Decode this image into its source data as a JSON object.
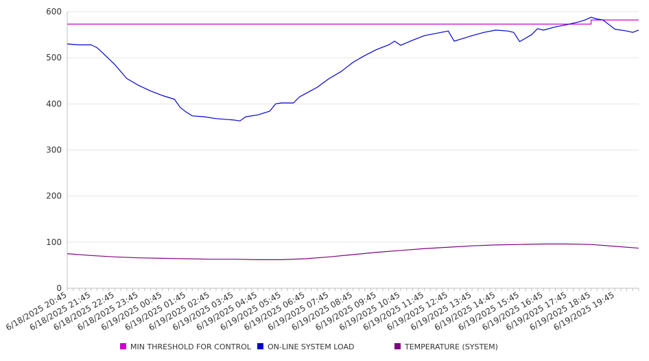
{
  "chart_data": {
    "type": "line",
    "title": "",
    "xlabel": "",
    "ylabel": "",
    "ylim": [
      0,
      600
    ],
    "yticks": [
      0,
      100,
      200,
      300,
      400,
      500,
      600
    ],
    "grid": true,
    "legend_position": "bottom",
    "x_tick_labels": [
      "6/18/2025 20:45",
      "6/18/2025 21:45",
      "6/18/2025 22:45",
      "6/18/2025 23:45",
      "6/19/2025 00:45",
      "6/19/2025 01:45",
      "6/19/2025 02:45",
      "6/19/2025 03:45",
      "6/19/2025 04:45",
      "6/19/2025 05:45",
      "6/19/2025 06:45",
      "6/19/2025 07:45",
      "6/19/2025 08:45",
      "6/19/2025 09:45",
      "6/19/2025 10:45",
      "6/19/2025 11:45",
      "6/19/2025 12:45",
      "6/19/2025 13:45",
      "6/19/2025 14:45",
      "6/19/2025 15:45",
      "6/19/2025 16:45",
      "6/19/2025 17:45",
      "6/19/2025 18:45",
      "6/19/2025 19:45"
    ],
    "x_range": [
      "6/18/2025 20:45",
      "6/19/2025 20:45"
    ],
    "series": [
      {
        "name": "MIN THRESHOLD FOR CONTROL",
        "color": "#cc00cc",
        "points": [
          [
            "6/18/2025 20:45",
            573
          ],
          [
            "6/19/2025 18:45",
            573
          ],
          [
            "6/19/2025 18:45",
            582
          ],
          [
            "6/19/2025 20:45",
            582
          ]
        ]
      },
      {
        "name": "ON-LINE SYSTEM LOAD",
        "color": "#0000cc",
        "points": [
          [
            "6/18/2025 20:45",
            530
          ],
          [
            "6/18/2025 21:15",
            528
          ],
          [
            "6/18/2025 21:45",
            528
          ],
          [
            "6/18/2025 22:00",
            522
          ],
          [
            "6/18/2025 22:15",
            510
          ],
          [
            "6/18/2025 22:45",
            485
          ],
          [
            "6/18/2025 23:15",
            455
          ],
          [
            "6/18/2025 23:45",
            440
          ],
          [
            "6/19/2025 00:15",
            428
          ],
          [
            "6/19/2025 00:45",
            418
          ],
          [
            "6/19/2025 01:15",
            410
          ],
          [
            "6/19/2025 01:30",
            392
          ],
          [
            "6/19/2025 01:45",
            382
          ],
          [
            "6/19/2025 02:00",
            374
          ],
          [
            "6/19/2025 02:30",
            372
          ],
          [
            "6/19/2025 03:00",
            368
          ],
          [
            "6/19/2025 03:30",
            366
          ],
          [
            "6/19/2025 03:45",
            365
          ],
          [
            "6/19/2025 04:00",
            363
          ],
          [
            "6/19/2025 04:15",
            372
          ],
          [
            "6/19/2025 04:45",
            376
          ],
          [
            "6/19/2025 05:15",
            384
          ],
          [
            "6/19/2025 05:30",
            400
          ],
          [
            "6/19/2025 05:45",
            402
          ],
          [
            "6/19/2025 06:15",
            402
          ],
          [
            "6/19/2025 06:30",
            415
          ],
          [
            "6/19/2025 06:45",
            422
          ],
          [
            "6/19/2025 07:15",
            436
          ],
          [
            "6/19/2025 07:45",
            455
          ],
          [
            "6/19/2025 08:15",
            470
          ],
          [
            "6/19/2025 08:45",
            490
          ],
          [
            "6/19/2025 09:15",
            505
          ],
          [
            "6/19/2025 09:45",
            518
          ],
          [
            "6/19/2025 10:15",
            528
          ],
          [
            "6/19/2025 10:30",
            536
          ],
          [
            "6/19/2025 10:45",
            527
          ],
          [
            "6/19/2025 11:15",
            538
          ],
          [
            "6/19/2025 11:45",
            548
          ],
          [
            "6/19/2025 12:15",
            553
          ],
          [
            "6/19/2025 12:45",
            558
          ],
          [
            "6/19/2025 13:00",
            536
          ],
          [
            "6/19/2025 13:15",
            540
          ],
          [
            "6/19/2025 13:45",
            548
          ],
          [
            "6/19/2025 14:15",
            555
          ],
          [
            "6/19/2025 14:45",
            560
          ],
          [
            "6/19/2025 15:15",
            558
          ],
          [
            "6/19/2025 15:30",
            555
          ],
          [
            "6/19/2025 15:45",
            535
          ],
          [
            "6/19/2025 16:15",
            550
          ],
          [
            "6/19/2025 16:30",
            563
          ],
          [
            "6/19/2025 16:45",
            560
          ],
          [
            "6/19/2025 17:15",
            567
          ],
          [
            "6/19/2025 17:45",
            572
          ],
          [
            "6/19/2025 18:15",
            578
          ],
          [
            "6/19/2025 18:30",
            582
          ],
          [
            "6/19/2025 18:45",
            588
          ],
          [
            "6/19/2025 19:00",
            584
          ],
          [
            "6/19/2025 19:15",
            582
          ],
          [
            "6/19/2025 19:30",
            572
          ],
          [
            "6/19/2025 19:45",
            562
          ],
          [
            "6/19/2025 20:15",
            558
          ],
          [
            "6/19/2025 20:30",
            555
          ],
          [
            "6/19/2025 20:45",
            560
          ]
        ]
      },
      {
        "name": "TEMPERATURE (SYSTEM)",
        "color": "#800080",
        "points": [
          [
            "6/18/2025 20:45",
            75
          ],
          [
            "6/18/2025 21:45",
            71
          ],
          [
            "6/18/2025 22:45",
            68
          ],
          [
            "6/18/2025 23:45",
            66
          ],
          [
            "6/19/2025 00:45",
            65
          ],
          [
            "6/19/2025 01:45",
            64
          ],
          [
            "6/19/2025 02:45",
            63
          ],
          [
            "6/19/2025 03:45",
            63
          ],
          [
            "6/19/2025 04:45",
            62
          ],
          [
            "6/19/2025 05:45",
            62
          ],
          [
            "6/19/2025 06:45",
            64
          ],
          [
            "6/19/2025 07:45",
            68
          ],
          [
            "6/19/2025 08:45",
            73
          ],
          [
            "6/19/2025 09:45",
            78
          ],
          [
            "6/19/2025 10:45",
            82
          ],
          [
            "6/19/2025 11:45",
            86
          ],
          [
            "6/19/2025 12:45",
            89
          ],
          [
            "6/19/2025 13:45",
            92
          ],
          [
            "6/19/2025 14:45",
            94
          ],
          [
            "6/19/2025 15:45",
            95
          ],
          [
            "6/19/2025 16:45",
            96
          ],
          [
            "6/19/2025 17:45",
            96
          ],
          [
            "6/19/2025 18:45",
            95
          ],
          [
            "6/19/2025 19:45",
            91
          ],
          [
            "6/19/2025 20:45",
            87
          ]
        ]
      }
    ]
  }
}
